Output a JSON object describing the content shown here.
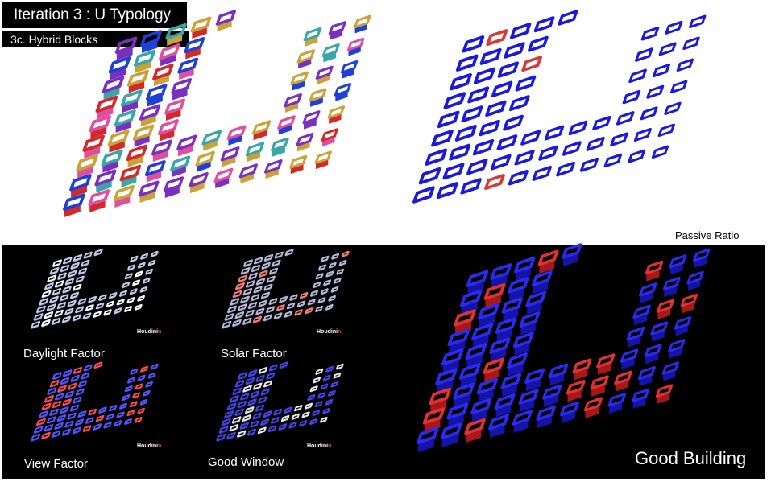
{
  "header": {
    "title": "Iteration 3 : U Typology",
    "subtitle": "3c. Hybrid Blocks"
  },
  "passive_ratio_label": "Passive Ratio",
  "analysis": {
    "panels": [
      {
        "label": "Daylight Factor",
        "logo_text": "Houdini",
        "logo_accent": "n"
      },
      {
        "label": "Solar Factor",
        "logo_text": "Houdini",
        "logo_accent": "n"
      },
      {
        "label": "View Factor",
        "logo_text": "Houdini",
        "logo_accent": "n"
      },
      {
        "label": "Good Window",
        "logo_text": "Houdini",
        "logo_accent": "n"
      }
    ],
    "result_label": "Good Building"
  },
  "colors": {
    "typology_palette": [
      "#3aa7a7",
      "#c9a33a",
      "#7b2fbf",
      "#1f3fd8",
      "#d22a2a",
      "#e04ea0"
    ],
    "passive_blue": "#1a1ad8",
    "passive_red": "#d83a3a",
    "good_blue": "#2a2af0",
    "good_red": "#e43030"
  }
}
